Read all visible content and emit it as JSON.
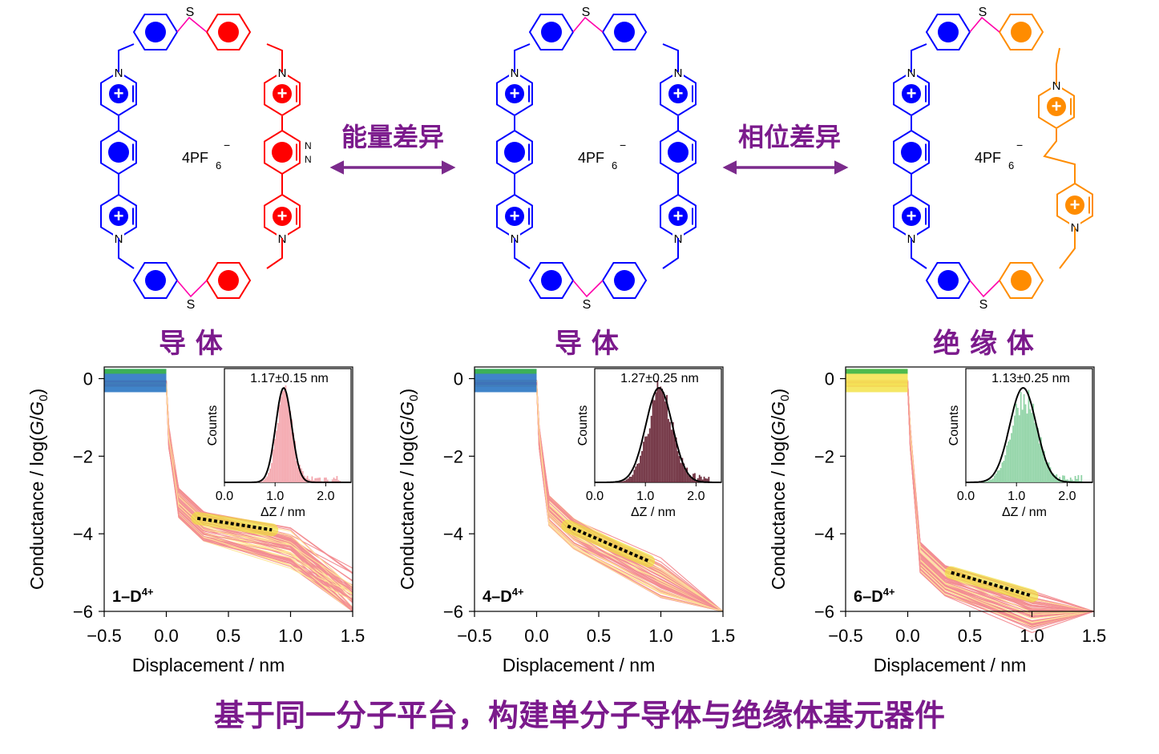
{
  "molecules": [
    {
      "label": "导 体",
      "anion": "4PF",
      "anion_sub": "6",
      "anion_sup": "−",
      "sulfur": "S",
      "nitrogen": "N",
      "plus": "+",
      "right_color": "#ff0000"
    },
    {
      "label": "导 体",
      "anion": "4PF",
      "anion_sub": "6",
      "anion_sup": "−",
      "sulfur": "S",
      "nitrogen": "N",
      "plus": "+",
      "right_color": "#0000ff"
    },
    {
      "label": "绝 缘 体",
      "anion": "4PF",
      "anion_sub": "6",
      "anion_sup": "−",
      "sulfur": "S",
      "nitrogen": "N",
      "plus": "+",
      "right_color": "#ff8c00"
    }
  ],
  "arrows": [
    "能量差异",
    "相位差异"
  ],
  "colors": {
    "label": "#7b1a8c",
    "arrow": "#7b2a8c",
    "left_ring": "#0000ff"
  },
  "panels": [
    {
      "name": "1–D",
      "charge": "4+",
      "inset_text": "1.17±0.15 nm",
      "inset_mean": 1.17,
      "inset_sd": 0.15,
      "hist_color": "#f4a6ad",
      "plateau": [
        0.25,
        -3.6,
        0.85,
        -3.9
      ]
    },
    {
      "name": "4–D",
      "charge": "4+",
      "inset_text": "1.27±0.25 nm",
      "inset_mean": 1.27,
      "inset_sd": 0.25,
      "hist_color": "#6b2a3a",
      "plateau": [
        0.25,
        -3.8,
        0.9,
        -4.7
      ]
    },
    {
      "name": "6–D",
      "charge": "4+",
      "inset_text": "1.13±0.25 nm",
      "inset_mean": 1.13,
      "inset_sd": 0.25,
      "hist_color": "#8fd3a5",
      "plateau": [
        0.35,
        -5.0,
        1.0,
        -5.6
      ]
    }
  ],
  "axes": {
    "xlabel": "Displacement / nm",
    "ylabel_pre": "Conductance / log(",
    "ylabel_G": "G",
    "ylabel_slash": "/",
    "ylabel_G0": "G",
    "ylabel_0": "0",
    "ylabel_post": ")",
    "xticks": [
      "−0.5",
      "0.0",
      "0.5",
      "1.0",
      "1.5"
    ],
    "yticks": [
      "0",
      "−2",
      "−4",
      "−6"
    ],
    "inset_xlabel": "ΔZ / nm",
    "inset_ylabel": "Counts",
    "inset_xticks": [
      "0.0",
      "1.0",
      "2.0"
    ]
  },
  "chart_data": {
    "type": "heatmap",
    "x_range": [
      -0.5,
      1.5
    ],
    "y_range": [
      -6,
      0.3
    ],
    "inset_x_range": [
      0,
      2.5
    ],
    "series": [
      {
        "name": "1–D4+",
        "inset_mean_nm": 1.17,
        "inset_sd_nm": 0.15
      },
      {
        "name": "4–D4+",
        "inset_mean_nm": 1.27,
        "inset_sd_nm": 0.25
      },
      {
        "name": "6–D4+",
        "inset_mean_nm": 1.13,
        "inset_sd_nm": 0.25
      }
    ]
  },
  "caption": "基于同一分子平台，构建单分子导体与绝缘体基元器件"
}
